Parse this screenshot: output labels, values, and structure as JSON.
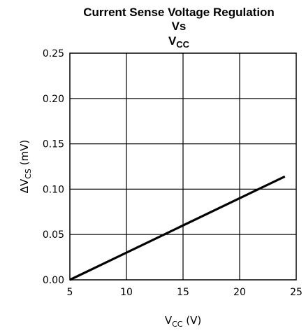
{
  "chart_data": {
    "type": "line",
    "title": {
      "line1": "Current Sense Voltage Regulation",
      "line2": "Vs",
      "line3_main": "V",
      "line3_sub": "CC"
    },
    "xlabel": {
      "main": "V",
      "sub": "CC",
      "unit": " (V)"
    },
    "ylabel": {
      "prefix": "ΔV",
      "sub": "CS",
      "unit": " (mV)"
    },
    "xlim": [
      5,
      25
    ],
    "ylim": [
      0,
      0.25
    ],
    "x_ticks": [
      "5",
      "10",
      "15",
      "20",
      "25"
    ],
    "y_ticks": [
      "0.00",
      "0.05",
      "0.10",
      "0.15",
      "0.20",
      "0.25"
    ],
    "grid": true,
    "series": [
      {
        "x": [
          5,
          24
        ],
        "y": [
          0.0,
          0.114
        ]
      }
    ]
  }
}
